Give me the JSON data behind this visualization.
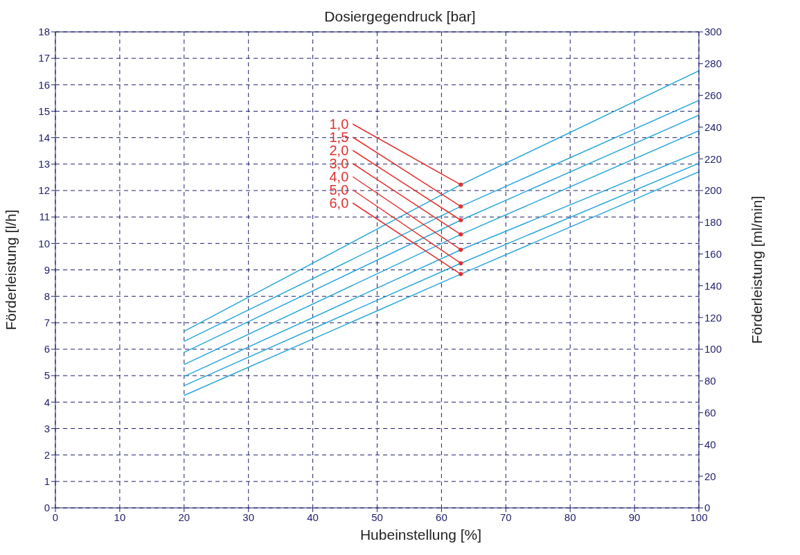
{
  "chart_data": {
    "type": "line",
    "title": "Dosiergegendruck [bar]",
    "xlabel": "Hubeinstellung [%]",
    "ylabel": "Förderleistung [l/h]",
    "y2label": "Förderleistung [ml/min]",
    "x": [
      20,
      63,
      100
    ],
    "series": [
      {
        "name": "1,0",
        "color": "#29a6dc",
        "values": [
          6.68,
          12.22,
          16.53
        ]
      },
      {
        "name": "1,5",
        "color": "#29a6dc",
        "values": [
          6.3,
          11.4,
          15.41
        ]
      },
      {
        "name": "2,0",
        "color": "#29a6dc",
        "values": [
          5.88,
          10.88,
          14.85
        ]
      },
      {
        "name": "3,0",
        "color": "#29a6dc",
        "values": [
          5.42,
          10.34,
          14.26
        ]
      },
      {
        "name": "4,0",
        "color": "#29a6dc",
        "values": [
          4.97,
          9.76,
          13.46
        ]
      },
      {
        "name": "5,0",
        "color": "#29a6dc",
        "values": [
          4.62,
          9.25,
          13.03
        ]
      },
      {
        "name": "6,0",
        "color": "#29a6dc",
        "values": [
          4.25,
          8.84,
          12.71
        ]
      }
    ],
    "xlim": [
      0,
      100
    ],
    "xticks": [
      0,
      10,
      20,
      30,
      40,
      50,
      60,
      70,
      80,
      90,
      100
    ],
    "ylim": [
      0,
      18
    ],
    "yticks": [
      0,
      1,
      2,
      3,
      4,
      5,
      6,
      7,
      8,
      9,
      10,
      11,
      12,
      13,
      14,
      15,
      16,
      17,
      18
    ],
    "y2lim": [
      0,
      300
    ],
    "y2ticks": [
      0,
      20,
      40,
      60,
      80,
      100,
      120,
      140,
      160,
      180,
      200,
      220,
      240,
      260,
      280,
      300
    ],
    "grid": true
  }
}
